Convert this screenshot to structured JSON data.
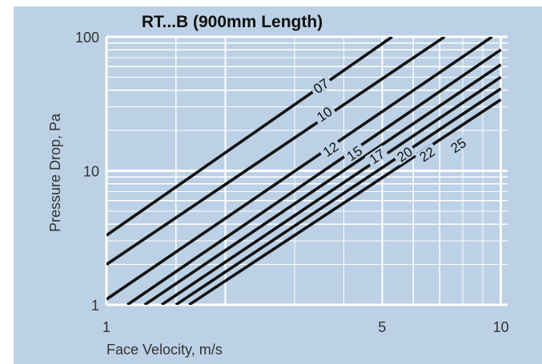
{
  "colors": {
    "background": "#bcd1e5",
    "grid": "#ffffff",
    "line": "#111111"
  },
  "chart_data": {
    "type": "line",
    "title": "RT...B (900mm Length)",
    "xlabel": "Face Velocity, m/s",
    "ylabel": "Pressure Drop, Pa",
    "x_scale": "log",
    "y_scale": "log",
    "xlim": [
      1,
      10.4
    ],
    "ylim": [
      1,
      100
    ],
    "grid": true,
    "x_tick_labels": [
      {
        "value": 1,
        "label": "1"
      },
      {
        "value": 5,
        "label": "5"
      },
      {
        "value": 10,
        "label": "10"
      }
    ],
    "y_tick_labels": [
      {
        "value": 1,
        "label": "1"
      },
      {
        "value": 10,
        "label": "10"
      },
      {
        "value": 100,
        "label": "100"
      }
    ],
    "series": [
      {
        "name": "07",
        "x": [
          1.0,
          5.3
        ],
        "y": [
          3.3,
          100
        ],
        "label_at": [
          3.5,
          43
        ]
      },
      {
        "name": "10",
        "x": [
          1.0,
          7.2
        ],
        "y": [
          2.0,
          100
        ],
        "label_at": [
          3.57,
          26.5
        ]
      },
      {
        "name": "12",
        "x": [
          1.0,
          9.5
        ],
        "y": [
          1.1,
          100
        ],
        "label_at": [
          3.7,
          14.5
        ]
      },
      {
        "name": "15",
        "x": [
          1.13,
          10.0
        ],
        "y": [
          1.0,
          80
        ],
        "label_at": [
          4.25,
          13.5
        ]
      },
      {
        "name": "17",
        "x": [
          1.25,
          10.0
        ],
        "y": [
          1.0,
          62
        ],
        "label_at": [
          4.85,
          12.8
        ]
      },
      {
        "name": "20",
        "x": [
          1.38,
          10.0
        ],
        "y": [
          1.0,
          50
        ],
        "label_at": [
          5.7,
          13.3
        ]
      },
      {
        "name": "22",
        "x": [
          1.5,
          10.0
        ],
        "y": [
          1.0,
          41
        ],
        "label_at": [
          6.5,
          13.3
        ]
      },
      {
        "name": "25",
        "x": [
          1.62,
          10.0
        ],
        "y": [
          1.0,
          34
        ],
        "label_at": [
          7.8,
          15.5
        ]
      }
    ]
  }
}
